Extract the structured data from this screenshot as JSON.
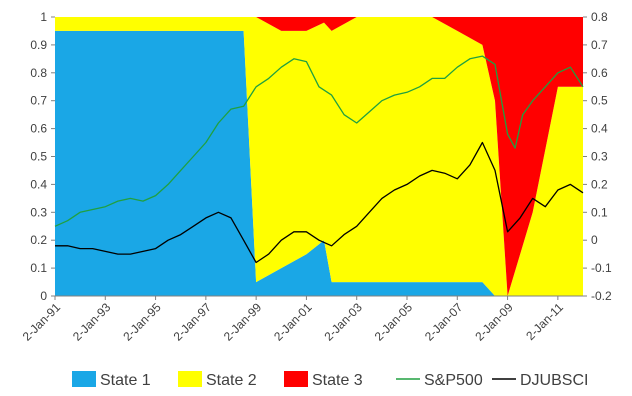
{
  "chart_data": {
    "type": "area",
    "title": "",
    "x_tick_labels": [
      "2-Jan-91",
      "2-Jan-93",
      "2-Jan-95",
      "2-Jan-97",
      "2-Jan-99",
      "2-Jan-01",
      "2-Jan-03",
      "2-Jan-05",
      "2-Jan-07",
      "2-Jan-09",
      "2-Jan-11"
    ],
    "x_range": [
      1991.0,
      2012.0
    ],
    "y_left": {
      "ylim": [
        0,
        1
      ],
      "ticks": [
        0,
        0.1,
        0.2,
        0.3,
        0.4,
        0.5,
        0.6,
        0.7,
        0.8,
        0.9,
        1
      ]
    },
    "y_right": {
      "ylim": [
        -0.2,
        0.8
      ],
      "ticks": [
        -0.2,
        -0.1,
        0,
        0.1,
        0.2,
        0.3,
        0.4,
        0.5,
        0.6,
        0.7,
        0.8
      ]
    },
    "grid": false,
    "legend_position": "bottom",
    "legend": [
      {
        "label": "State 1",
        "kind": "box",
        "color": "#1AA7E6"
      },
      {
        "label": "State 2",
        "kind": "box",
        "color": "#FFFF00"
      },
      {
        "label": "State 3",
        "kind": "box",
        "color": "#FF0000"
      },
      {
        "label": "S&P500",
        "kind": "line",
        "color": "#20A040"
      },
      {
        "label": "DJUBSCI",
        "kind": "line",
        "color": "#000000"
      }
    ],
    "state_probabilities": {
      "note_axis": "left",
      "x": [
        1991.0,
        1992.0,
        1993.0,
        1994.0,
        1995.0,
        1996.0,
        1997.0,
        1998.0,
        1998.5,
        1999.0,
        2000.0,
        2001.0,
        2001.7,
        2002.0,
        2003.0,
        2004.0,
        2005.0,
        2006.0,
        2007.0,
        2008.0,
        2008.5,
        2009.0,
        2010.0,
        2011.0,
        2012.0
      ],
      "state1": [
        0.95,
        0.95,
        0.95,
        0.95,
        0.95,
        0.95,
        0.95,
        0.95,
        0.95,
        0.05,
        0.1,
        0.15,
        0.2,
        0.05,
        0.05,
        0.05,
        0.05,
        0.05,
        0.05,
        0.05,
        0.0,
        0.0,
        0.0,
        0.0,
        0.0
      ],
      "state2": [
        0.05,
        0.05,
        0.05,
        0.05,
        0.05,
        0.05,
        0.05,
        0.05,
        0.05,
        0.95,
        0.85,
        0.8,
        0.78,
        0.9,
        0.95,
        0.95,
        0.95,
        0.95,
        0.9,
        0.85,
        0.7,
        0.0,
        0.3,
        0.75,
        0.75
      ],
      "state3": [
        0.0,
        0.0,
        0.0,
        0.0,
        0.0,
        0.0,
        0.0,
        0.0,
        0.0,
        0.0,
        0.05,
        0.05,
        0.02,
        0.05,
        0.0,
        0.0,
        0.0,
        0.0,
        0.05,
        0.1,
        0.3,
        1.0,
        0.7,
        0.25,
        0.25
      ]
    },
    "series": [
      {
        "name": "S&P500",
        "axis": "right",
        "color": "#20A040",
        "x": [
          1991.0,
          1991.5,
          1992.0,
          1992.5,
          1993.0,
          1993.5,
          1994.0,
          1994.5,
          1995.0,
          1995.5,
          1996.0,
          1996.5,
          1997.0,
          1997.5,
          1998.0,
          1998.5,
          1999.0,
          1999.5,
          2000.0,
          2000.5,
          2001.0,
          2001.5,
          2002.0,
          2002.5,
          2003.0,
          2003.5,
          2004.0,
          2004.5,
          2005.0,
          2005.5,
          2006.0,
          2006.5,
          2007.0,
          2007.5,
          2008.0,
          2008.5,
          2009.0,
          2009.3,
          2009.6,
          2010.0,
          2010.5,
          2011.0,
          2011.5,
          2012.0
        ],
        "y": [
          0.05,
          0.07,
          0.1,
          0.11,
          0.12,
          0.14,
          0.15,
          0.14,
          0.16,
          0.2,
          0.25,
          0.3,
          0.35,
          0.42,
          0.47,
          0.48,
          0.55,
          0.58,
          0.62,
          0.65,
          0.64,
          0.55,
          0.52,
          0.45,
          0.42,
          0.46,
          0.5,
          0.52,
          0.53,
          0.55,
          0.58,
          0.58,
          0.62,
          0.65,
          0.66,
          0.63,
          0.38,
          0.33,
          0.45,
          0.5,
          0.55,
          0.6,
          0.62,
          0.55
        ]
      },
      {
        "name": "DJUBSCI",
        "axis": "right",
        "color": "#000000",
        "x": [
          1991.0,
          1991.5,
          1992.0,
          1992.5,
          1993.0,
          1993.5,
          1994.0,
          1994.5,
          1995.0,
          1995.5,
          1996.0,
          1996.5,
          1997.0,
          1997.5,
          1998.0,
          1998.5,
          1999.0,
          1999.5,
          2000.0,
          2000.5,
          2001.0,
          2001.5,
          2002.0,
          2002.5,
          2003.0,
          2003.5,
          2004.0,
          2004.5,
          2005.0,
          2005.5,
          2006.0,
          2006.5,
          2007.0,
          2007.5,
          2008.0,
          2008.5,
          2009.0,
          2009.5,
          2010.0,
          2010.5,
          2011.0,
          2011.5,
          2012.0
        ],
        "y": [
          -0.02,
          -0.02,
          -0.03,
          -0.03,
          -0.04,
          -0.05,
          -0.05,
          -0.04,
          -0.03,
          0.0,
          0.02,
          0.05,
          0.08,
          0.1,
          0.08,
          0.0,
          -0.08,
          -0.05,
          0.0,
          0.03,
          0.03,
          0.0,
          -0.02,
          0.02,
          0.05,
          0.1,
          0.15,
          0.18,
          0.2,
          0.23,
          0.25,
          0.24,
          0.22,
          0.27,
          0.35,
          0.25,
          0.03,
          0.08,
          0.15,
          0.12,
          0.18,
          0.2,
          0.17
        ]
      }
    ]
  }
}
